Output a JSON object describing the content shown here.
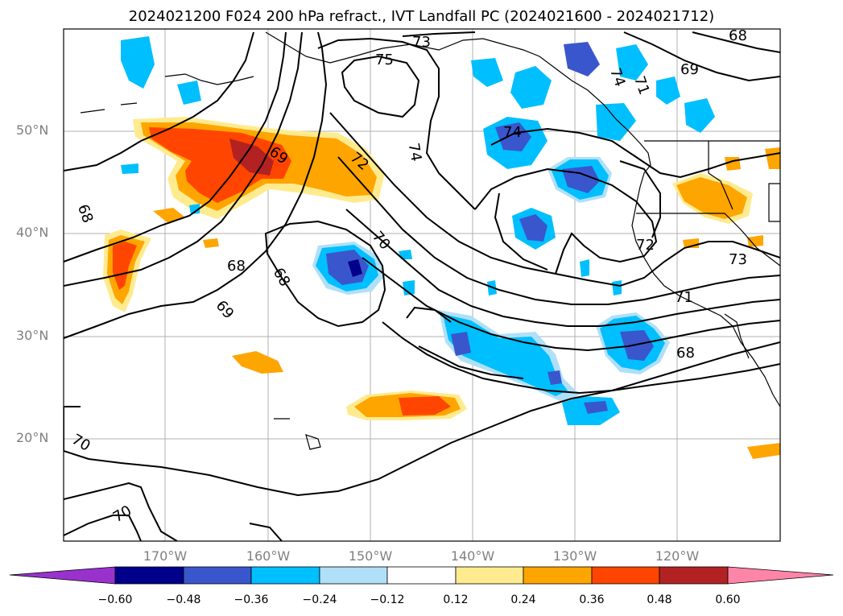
{
  "title": "2024021200 F024 200 hPa refract., IVT Landfall PC (2024021600 - 2024021712)",
  "map": {
    "lat_labels": [
      "50°N",
      "40°N",
      "30°N",
      "20°N"
    ],
    "lon_labels": [
      "170°W",
      "160°W",
      "150°W",
      "140°W",
      "130°W",
      "120°W"
    ],
    "contour_labels": [
      "73",
      "75",
      "74",
      "74",
      "72",
      "69",
      "69",
      "68",
      "68",
      "68",
      "70",
      "69",
      "72",
      "73",
      "71",
      "68",
      "70",
      "70",
      "68",
      "74",
      "71"
    ]
  },
  "colorbar": {
    "tick_labels": [
      "−0.60",
      "−0.48",
      "−0.36",
      "−0.24",
      "−0.12",
      "0.12",
      "0.24",
      "0.36",
      "0.48",
      "0.60"
    ],
    "colors": [
      "#9932cc",
      "#00008b",
      "#3a56cc",
      "#00bfff",
      "#b0e0f8",
      "#ffffff",
      "#ffeb8f",
      "#ffa500",
      "#ff4500",
      "#b22222",
      "#ff85a8"
    ]
  }
}
